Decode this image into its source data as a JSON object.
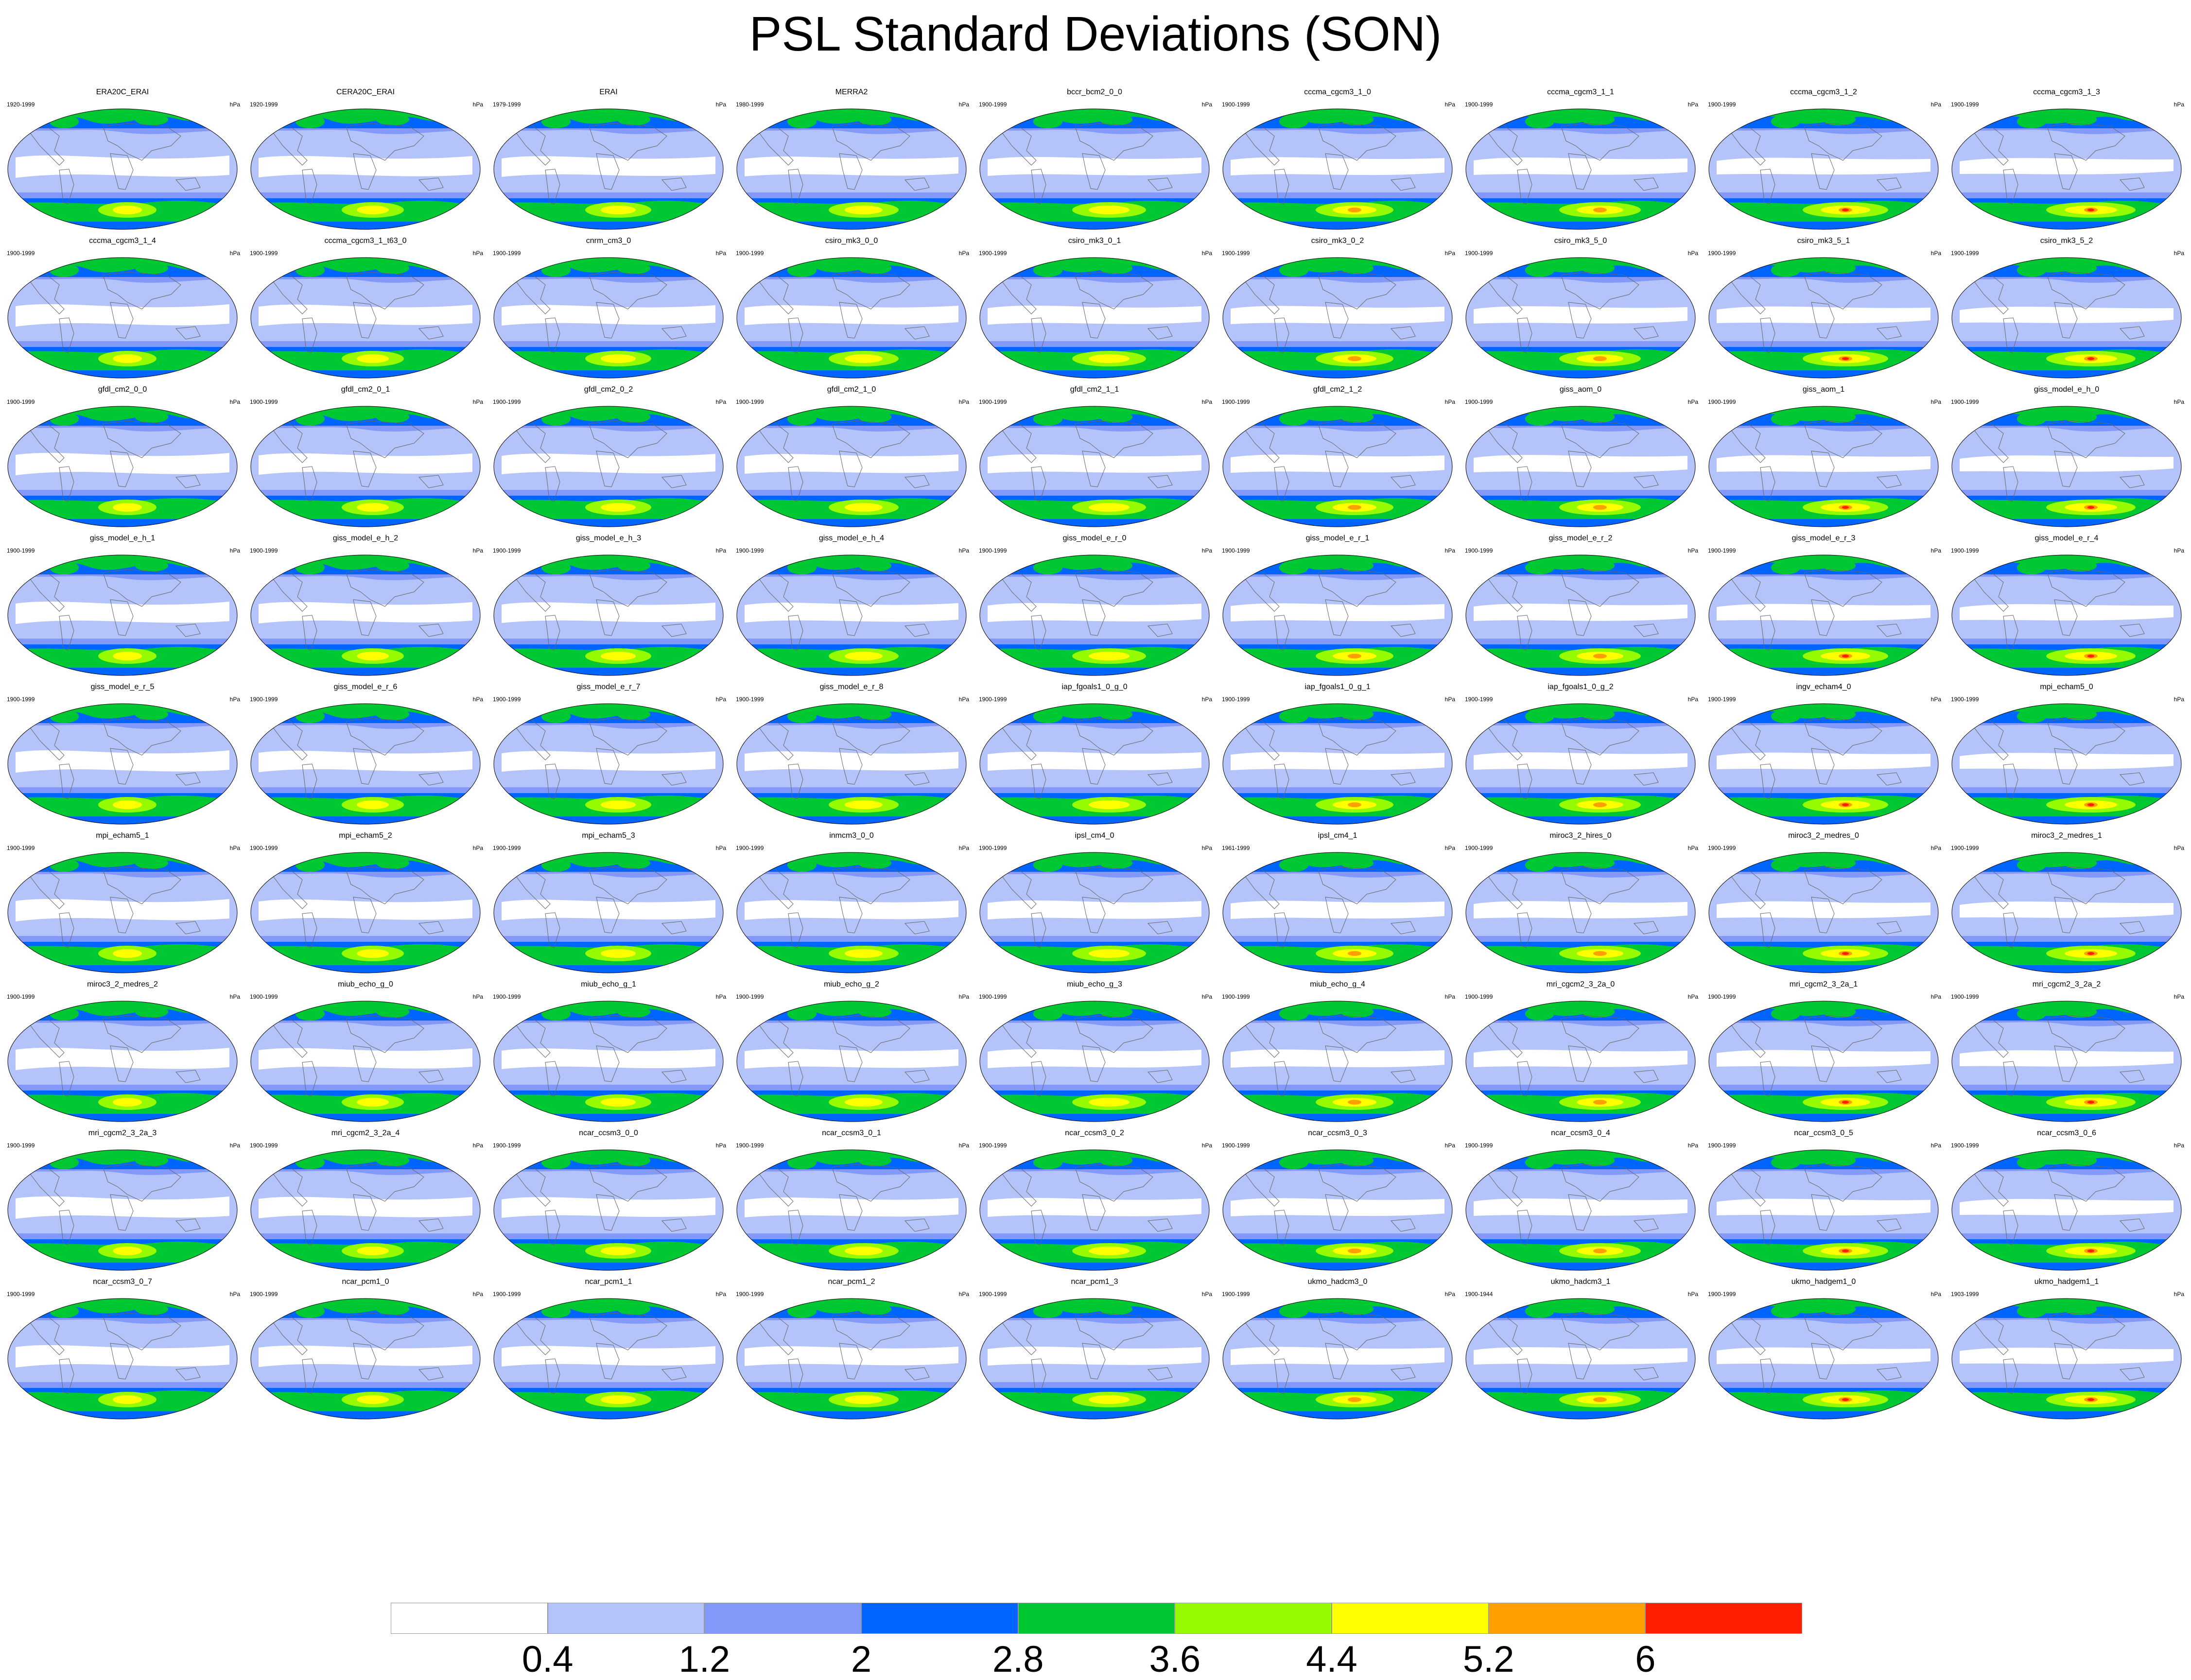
{
  "title": "PSL Standard Deviations (SON)",
  "unit": "hPa",
  "panels": [
    {
      "name": "ERA20C_ERAI",
      "years": "1920-1999"
    },
    {
      "name": "CERA20C_ERAI",
      "years": "1920-1999"
    },
    {
      "name": "ERAI",
      "years": "1979-1999"
    },
    {
      "name": "MERRA2",
      "years": "1980-1999"
    },
    {
      "name": "bccr_bcm2_0_0",
      "years": "1900-1999"
    },
    {
      "name": "cccma_cgcm3_1_0",
      "years": "1900-1999"
    },
    {
      "name": "cccma_cgcm3_1_1",
      "years": "1900-1999"
    },
    {
      "name": "cccma_cgcm3_1_2",
      "years": "1900-1999"
    },
    {
      "name": "cccma_cgcm3_1_3",
      "years": "1900-1999"
    },
    {
      "name": "cccma_cgcm3_1_4",
      "years": "1900-1999"
    },
    {
      "name": "cccma_cgcm3_1_t63_0",
      "years": "1900-1999"
    },
    {
      "name": "cnrm_cm3_0",
      "years": "1900-1999"
    },
    {
      "name": "csiro_mk3_0_0",
      "years": "1900-1999"
    },
    {
      "name": "csiro_mk3_0_1",
      "years": "1900-1999"
    },
    {
      "name": "csiro_mk3_0_2",
      "years": "1900-1999"
    },
    {
      "name": "csiro_mk3_5_0",
      "years": "1900-1999"
    },
    {
      "name": "csiro_mk3_5_1",
      "years": "1900-1999"
    },
    {
      "name": "csiro_mk3_5_2",
      "years": "1900-1999"
    },
    {
      "name": "gfdl_cm2_0_0",
      "years": "1900-1999"
    },
    {
      "name": "gfdl_cm2_0_1",
      "years": "1900-1999"
    },
    {
      "name": "gfdl_cm2_0_2",
      "years": "1900-1999"
    },
    {
      "name": "gfdl_cm2_1_0",
      "years": "1900-1999"
    },
    {
      "name": "gfdl_cm2_1_1",
      "years": "1900-1999"
    },
    {
      "name": "gfdl_cm2_1_2",
      "years": "1900-1999"
    },
    {
      "name": "giss_aom_0",
      "years": "1900-1999"
    },
    {
      "name": "giss_aom_1",
      "years": "1900-1999"
    },
    {
      "name": "giss_model_e_h_0",
      "years": "1900-1999"
    },
    {
      "name": "giss_model_e_h_1",
      "years": "1900-1999"
    },
    {
      "name": "giss_model_e_h_2",
      "years": "1900-1999"
    },
    {
      "name": "giss_model_e_h_3",
      "years": "1900-1999"
    },
    {
      "name": "giss_model_e_h_4",
      "years": "1900-1999"
    },
    {
      "name": "giss_model_e_r_0",
      "years": "1900-1999"
    },
    {
      "name": "giss_model_e_r_1",
      "years": "1900-1999"
    },
    {
      "name": "giss_model_e_r_2",
      "years": "1900-1999"
    },
    {
      "name": "giss_model_e_r_3",
      "years": "1900-1999"
    },
    {
      "name": "giss_model_e_r_4",
      "years": "1900-1999"
    },
    {
      "name": "giss_model_e_r_5",
      "years": "1900-1999"
    },
    {
      "name": "giss_model_e_r_6",
      "years": "1900-1999"
    },
    {
      "name": "giss_model_e_r_7",
      "years": "1900-1999"
    },
    {
      "name": "giss_model_e_r_8",
      "years": "1900-1999"
    },
    {
      "name": "iap_fgoals1_0_g_0",
      "years": "1900-1999"
    },
    {
      "name": "iap_fgoals1_0_g_1",
      "years": "1900-1999"
    },
    {
      "name": "iap_fgoals1_0_g_2",
      "years": "1900-1999"
    },
    {
      "name": "ingv_echam4_0",
      "years": "1900-1999"
    },
    {
      "name": "mpi_echam5_0",
      "years": "1900-1999"
    },
    {
      "name": "mpi_echam5_1",
      "years": "1900-1999"
    },
    {
      "name": "mpi_echam5_2",
      "years": "1900-1999"
    },
    {
      "name": "mpi_echam5_3",
      "years": "1900-1999"
    },
    {
      "name": "inmcm3_0_0",
      "years": "1900-1999"
    },
    {
      "name": "ipsl_cm4_0",
      "years": "1900-1999"
    },
    {
      "name": "ipsl_cm4_1",
      "years": "1961-1999"
    },
    {
      "name": "miroc3_2_hires_0",
      "years": "1900-1999"
    },
    {
      "name": "miroc3_2_medres_0",
      "years": "1900-1999"
    },
    {
      "name": "miroc3_2_medres_1",
      "years": "1900-1999"
    },
    {
      "name": "miroc3_2_medres_2",
      "years": "1900-1999"
    },
    {
      "name": "miub_echo_g_0",
      "years": "1900-1999"
    },
    {
      "name": "miub_echo_g_1",
      "years": "1900-1999"
    },
    {
      "name": "miub_echo_g_2",
      "years": "1900-1999"
    },
    {
      "name": "miub_echo_g_3",
      "years": "1900-1999"
    },
    {
      "name": "miub_echo_g_4",
      "years": "1900-1999"
    },
    {
      "name": "mri_cgcm2_3_2a_0",
      "years": "1900-1999"
    },
    {
      "name": "mri_cgcm2_3_2a_1",
      "years": "1900-1999"
    },
    {
      "name": "mri_cgcm2_3_2a_2",
      "years": "1900-1999"
    },
    {
      "name": "mri_cgcm2_3_2a_3",
      "years": "1900-1999"
    },
    {
      "name": "mri_cgcm2_3_2a_4",
      "years": "1900-1999"
    },
    {
      "name": "ncar_ccsm3_0_0",
      "years": "1900-1999"
    },
    {
      "name": "ncar_ccsm3_0_1",
      "years": "1900-1999"
    },
    {
      "name": "ncar_ccsm3_0_2",
      "years": "1900-1999"
    },
    {
      "name": "ncar_ccsm3_0_3",
      "years": "1900-1999"
    },
    {
      "name": "ncar_ccsm3_0_4",
      "years": "1900-1999"
    },
    {
      "name": "ncar_ccsm3_0_5",
      "years": "1900-1999"
    },
    {
      "name": "ncar_ccsm3_0_6",
      "years": "1900-1999"
    },
    {
      "name": "ncar_ccsm3_0_7",
      "years": "1900-1999"
    },
    {
      "name": "ncar_pcm1_0",
      "years": "1900-1999"
    },
    {
      "name": "ncar_pcm1_1",
      "years": "1900-1999"
    },
    {
      "name": "ncar_pcm1_2",
      "years": "1900-1999"
    },
    {
      "name": "ncar_pcm1_3",
      "years": "1900-1999"
    },
    {
      "name": "ukmo_hadcm3_0",
      "years": "1900-1999"
    },
    {
      "name": "ukmo_hadcm3_1",
      "years": "1900-1944"
    },
    {
      "name": "ukmo_hadgem1_0",
      "years": "1900-1999"
    },
    {
      "name": "ukmo_hadgem1_1",
      "years": "1903-1999"
    }
  ],
  "colorbar": {
    "colors": [
      "#ffffff",
      "#b4c4fa",
      "#8299fa",
      "#0064ff",
      "#00c832",
      "#96fa00",
      "#ffff00",
      "#ffa000",
      "#ff1e00"
    ],
    "labels": [
      "0.4",
      "1.2",
      "2",
      "2.8",
      "3.6",
      "4.4",
      "5.2",
      "6"
    ]
  }
}
